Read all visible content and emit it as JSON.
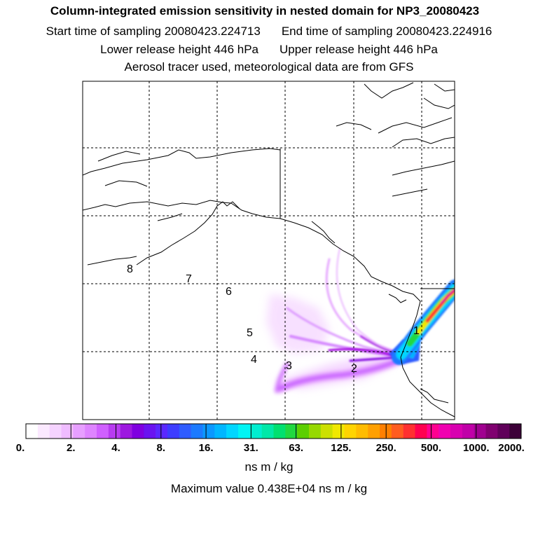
{
  "header": {
    "title": "Column-integrated emission sensitivity in nested domain for NP3_20080423",
    "start_label": "Start time of sampling 20080423.224713",
    "end_label": "End time of sampling 20080423.224916",
    "lower_label": "Lower release height  446 hPa",
    "upper_label": "Upper release height  446 hPa",
    "tracer_label": "Aerosol tracer used, meteorological data are from GFS"
  },
  "map": {
    "zone_markers": [
      "1",
      "2",
      "3",
      "4",
      "5",
      "6",
      "7",
      "8"
    ],
    "colors": {
      "plume_low": "#e9a0ff",
      "plume_mid": "#a000e0",
      "plume_blue": "#0070ff",
      "plume_cyan": "#00e0e0",
      "plume_green": "#30d000",
      "plume_yellow": "#ffd000",
      "plume_red": "#ff2020",
      "plume_magenta": "#e000a0"
    }
  },
  "colorbar": {
    "colors": [
      "#ffffff",
      "#fbe9ff",
      "#f5d3ff",
      "#efbcff",
      "#e79fff",
      "#de84ff",
      "#d060ff",
      "#b83bf0",
      "#9d18e0",
      "#7f00e0",
      "#6a13f0",
      "#5a28ff",
      "#3d3dff",
      "#2f5cff",
      "#1c7aff",
      "#0a98ff",
      "#00b6ff",
      "#00d6ff",
      "#00f4f4",
      "#00eed0",
      "#00e8a8",
      "#00e070",
      "#20d840",
      "#5ccf00",
      "#96d800",
      "#cce000",
      "#f0e800",
      "#ffd400",
      "#ffbc00",
      "#ffa000",
      "#ff8000",
      "#ff5c20",
      "#ff3030",
      "#ff0050",
      "#ff0090",
      "#f000b0",
      "#d800b0",
      "#c000a8",
      "#a00090",
      "#800070",
      "#60005a",
      "#3c0038"
    ],
    "ticks": [
      "0.",
      "2.",
      "4.",
      "8.",
      "16.",
      "31.",
      "63.",
      "125.",
      "250.",
      "500.",
      "1000.",
      "2000."
    ],
    "units": "ns m / kg",
    "max_value_label": "Maximum value  0.438E+04 ns m / kg"
  }
}
